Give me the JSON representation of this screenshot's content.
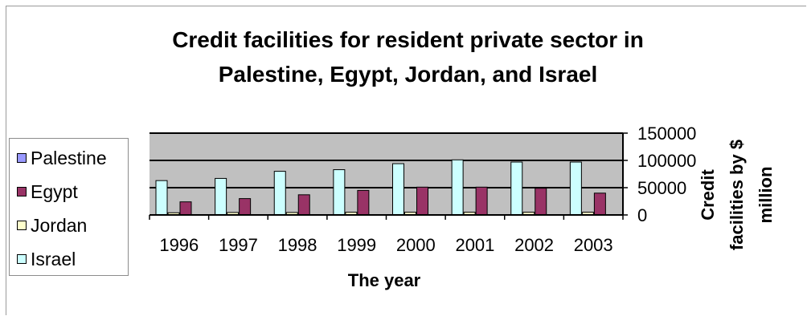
{
  "chart_data": {
    "type": "bar",
    "title_lines": [
      "Credit facilities for resident private sector in",
      "Palestine, Egypt, Jordan, and Israel"
    ],
    "xlabel": "The year",
    "ylabel_lines": [
      "Credit",
      "facilities by $",
      "million"
    ],
    "categories": [
      "1996",
      "1997",
      "1998",
      "1999",
      "2000",
      "2001",
      "2002",
      "2003"
    ],
    "ylim": [
      0,
      150000
    ],
    "yticks": [
      0,
      50000,
      100000,
      150000
    ],
    "ytick_labels": [
      "0",
      "50000",
      "100000",
      "150000"
    ],
    "grid": true,
    "legend_position": "left",
    "series": [
      {
        "name": "Palestine",
        "color": "#9999ff",
        "values": [
          0,
          0,
          0,
          0,
          0,
          0,
          0,
          0
        ]
      },
      {
        "name": "Egypt",
        "color": "#993366",
        "values": [
          24000,
          30000,
          37000,
          45000,
          51000,
          51000,
          49000,
          40000
        ]
      },
      {
        "name": "Jordan",
        "color": "#ffffcc",
        "values": [
          4000,
          4500,
          4500,
          5000,
          5000,
          5000,
          5000,
          5000
        ]
      },
      {
        "name": "Israel",
        "color": "#ccffff",
        "values": [
          63000,
          67000,
          80000,
          83000,
          94000,
          101000,
          97000,
          97000
        ]
      }
    ],
    "plot_background": "#c0c0c0"
  }
}
